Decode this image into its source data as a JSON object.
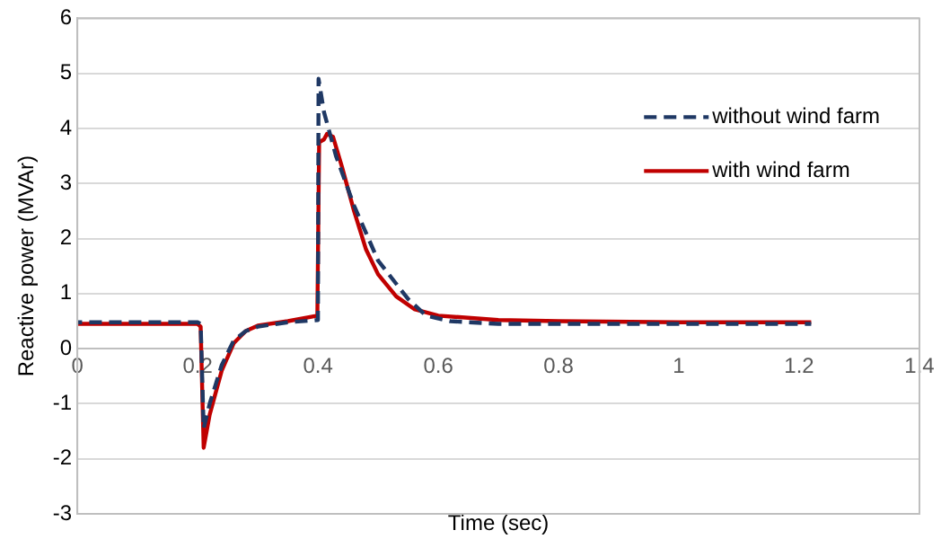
{
  "chart_data": {
    "type": "line",
    "xlabel": "Time (sec)",
    "ylabel": "Reactive power (MVAr)",
    "xlim": [
      0,
      1.4
    ],
    "xticks": [
      0,
      0.2,
      0.4,
      0.6,
      0.8,
      1,
      1.2,
      1.4
    ],
    "ylim": [
      -3,
      6
    ],
    "yticks": [
      -3,
      -2,
      -1,
      0,
      1,
      2,
      3,
      4,
      5,
      6
    ],
    "grid": "y",
    "legend": "right",
    "marker": "none",
    "series": [
      {
        "name": "without wind farm",
        "color": "#1f3864",
        "line_style": "dashed",
        "x": [
          0,
          0.2,
          0.205,
          0.21,
          0.22,
          0.24,
          0.26,
          0.28,
          0.3,
          0.35,
          0.4,
          0.401,
          0.41,
          0.43,
          0.46,
          0.5,
          0.55,
          0.58,
          0.62,
          0.7,
          1.22
        ],
        "values": [
          0.48,
          0.48,
          0.45,
          -1.45,
          -1.0,
          -0.3,
          0.15,
          0.32,
          0.4,
          0.48,
          0.52,
          4.9,
          4.3,
          3.5,
          2.6,
          1.6,
          0.9,
          0.6,
          0.5,
          0.45,
          0.45
        ]
      },
      {
        "name": "with wind farm",
        "color": "#c00000",
        "line_style": "solid",
        "x": [
          0,
          0.2,
          0.205,
          0.21,
          0.22,
          0.24,
          0.26,
          0.28,
          0.3,
          0.35,
          0.399,
          0.402,
          0.41,
          0.415,
          0.425,
          0.44,
          0.46,
          0.48,
          0.5,
          0.53,
          0.56,
          0.6,
          0.7,
          0.8,
          1.0,
          1.22
        ],
        "values": [
          0.45,
          0.45,
          0.4,
          -1.8,
          -1.2,
          -0.4,
          0.1,
          0.32,
          0.42,
          0.5,
          0.6,
          3.75,
          3.8,
          3.9,
          3.85,
          3.3,
          2.5,
          1.8,
          1.35,
          0.95,
          0.72,
          0.6,
          0.52,
          0.5,
          0.48,
          0.48
        ]
      }
    ]
  }
}
